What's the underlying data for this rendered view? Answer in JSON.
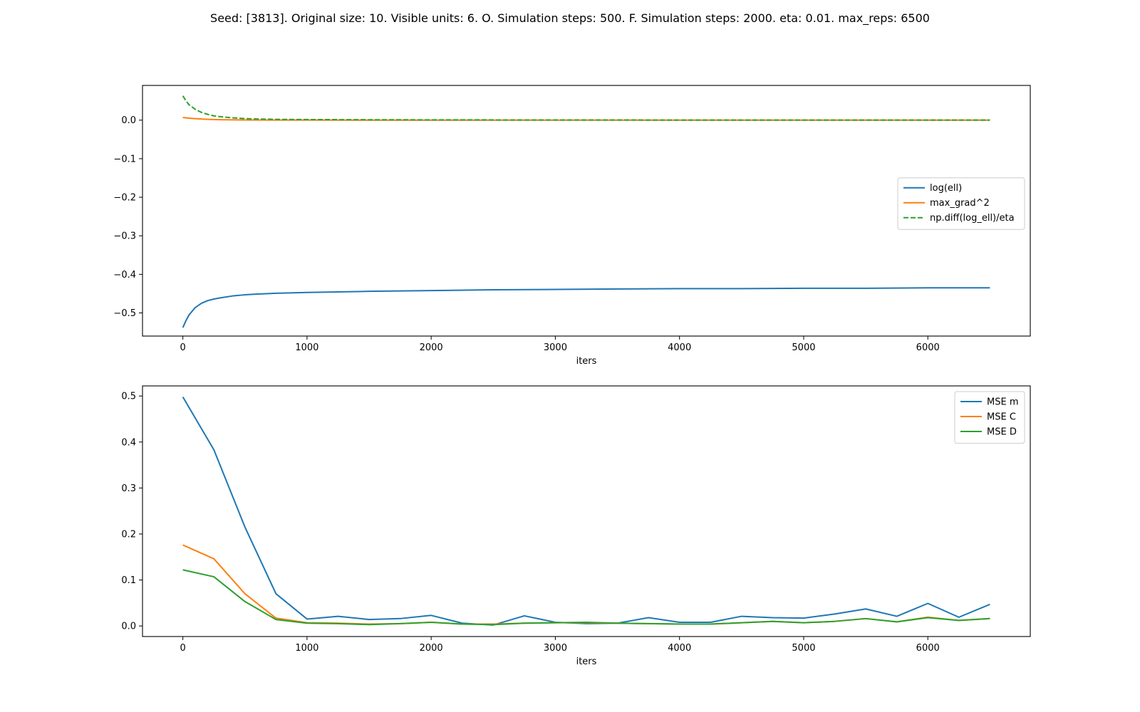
{
  "title": "Seed: [3813]. Original size: 10. Visible units: 6. O. Simulation steps: 500. F. Simulation steps: 2000. eta: 0.01. max_reps: 6500",
  "chart_data": [
    {
      "type": "line",
      "xlabel": "iters",
      "ylabel": "",
      "xlim": [
        -325,
        6825
      ],
      "ylim": [
        -0.56,
        0.09
      ],
      "xticks": [
        0,
        1000,
        2000,
        3000,
        4000,
        5000,
        6000
      ],
      "yticks": [
        -0.5,
        -0.4,
        -0.3,
        -0.2,
        -0.1,
        0.0
      ],
      "ytick_labels": [
        "−0.5",
        "−0.4",
        "−0.3",
        "−0.2",
        "−0.1",
        "0.0"
      ],
      "grid": false,
      "legend": "center-right",
      "series": [
        {
          "name": "log(ell)",
          "color": "#1f77b4",
          "dash": "solid",
          "x": [
            0,
            25,
            50,
            100,
            150,
            200,
            250,
            300,
            400,
            500,
            600,
            750,
            1000,
            1500,
            2000,
            2500,
            3000,
            3500,
            4000,
            4500,
            5000,
            5500,
            6000,
            6500
          ],
          "y": [
            -0.538,
            -0.52,
            -0.505,
            -0.486,
            -0.475,
            -0.468,
            -0.464,
            -0.461,
            -0.456,
            -0.453,
            -0.451,
            -0.449,
            -0.447,
            -0.444,
            -0.442,
            -0.44,
            -0.439,
            -0.438,
            -0.437,
            -0.437,
            -0.436,
            -0.436,
            -0.435,
            -0.435
          ]
        },
        {
          "name": "max_grad^2",
          "color": "#ff7f0e",
          "dash": "solid",
          "x": [
            0,
            50,
            100,
            200,
            300,
            500,
            750,
            1000,
            2000,
            3000,
            4000,
            5000,
            6000,
            6500
          ],
          "y": [
            0.007,
            0.005,
            0.004,
            0.002,
            0.0012,
            0.0005,
            0.0002,
            0.0001,
            0.0,
            0.0,
            0.0,
            0.0,
            0.0,
            0.0
          ]
        },
        {
          "name": "np.diff(log_ell)/eta",
          "color": "#2ca02c",
          "dash": "dashed",
          "x": [
            0,
            25,
            50,
            100,
            150,
            200,
            250,
            300,
            400,
            500,
            600,
            750,
            1000,
            1500,
            2000,
            3000,
            4000,
            5000,
            6000,
            6500
          ],
          "y": [
            0.063,
            0.05,
            0.04,
            0.028,
            0.02,
            0.015,
            0.011,
            0.009,
            0.006,
            0.004,
            0.003,
            0.002,
            0.0015,
            0.001,
            0.0007,
            0.0004,
            0.0003,
            0.0002,
            0.0002,
            0.0002
          ]
        }
      ]
    },
    {
      "type": "line",
      "xlabel": "iters",
      "ylabel": "",
      "xlim": [
        -325,
        6825
      ],
      "ylim": [
        -0.023,
        0.522
      ],
      "xticks": [
        0,
        1000,
        2000,
        3000,
        4000,
        5000,
        6000
      ],
      "yticks": [
        0.0,
        0.1,
        0.2,
        0.3,
        0.4,
        0.5
      ],
      "ytick_labels": [
        "0.0",
        "0.1",
        "0.2",
        "0.3",
        "0.4",
        "0.5"
      ],
      "grid": false,
      "legend": "top-right",
      "x": [
        0,
        250,
        500,
        750,
        1000,
        1250,
        1500,
        1750,
        2000,
        2250,
        2500,
        2750,
        3000,
        3250,
        3500,
        3750,
        4000,
        4250,
        4500,
        4750,
        5000,
        5250,
        5500,
        5750,
        6000,
        6250,
        6500
      ],
      "series": [
        {
          "name": "MSE m",
          "color": "#1f77b4",
          "dash": "solid",
          "values": [
            0.498,
            0.383,
            0.215,
            0.07,
            0.015,
            0.021,
            0.014,
            0.016,
            0.023,
            0.006,
            0.002,
            0.022,
            0.008,
            0.005,
            0.006,
            0.018,
            0.008,
            0.008,
            0.021,
            0.018,
            0.017,
            0.026,
            0.037,
            0.021,
            0.049,
            0.019,
            0.047
          ]
        },
        {
          "name": "MSE C",
          "color": "#ff7f0e",
          "dash": "solid",
          "values": [
            0.176,
            0.146,
            0.07,
            0.017,
            0.007,
            0.006,
            0.004,
            0.005,
            0.008,
            0.004,
            0.004,
            0.006,
            0.007,
            0.007,
            0.006,
            0.005,
            0.004,
            0.004,
            0.007,
            0.01,
            0.007,
            0.01,
            0.016,
            0.009,
            0.019,
            0.012,
            0.016
          ]
        },
        {
          "name": "MSE D",
          "color": "#2ca02c",
          "dash": "solid",
          "values": [
            0.122,
            0.107,
            0.053,
            0.014,
            0.006,
            0.005,
            0.003,
            0.005,
            0.008,
            0.004,
            0.003,
            0.006,
            0.007,
            0.008,
            0.006,
            0.005,
            0.004,
            0.004,
            0.007,
            0.01,
            0.007,
            0.01,
            0.016,
            0.009,
            0.018,
            0.012,
            0.016
          ]
        }
      ]
    }
  ]
}
